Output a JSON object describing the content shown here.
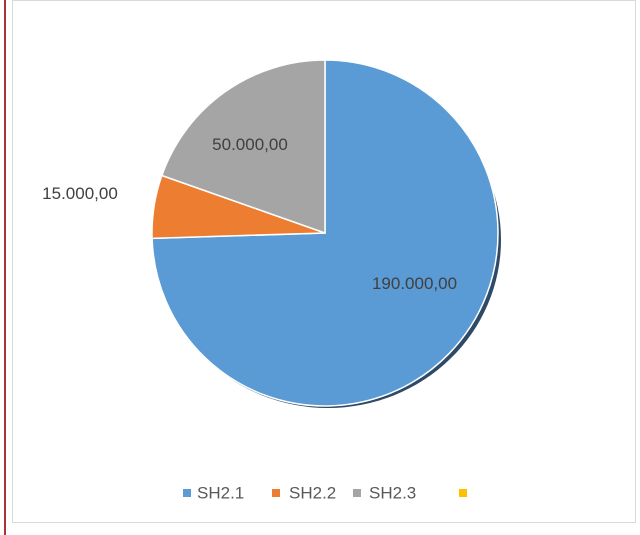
{
  "chart_data": {
    "type": "pie",
    "categories": [
      "SH2.1",
      "SH2.2",
      "SH2.3",
      null
    ],
    "values": [
      190000,
      15000,
      50000,
      null
    ],
    "value_labels": [
      "190.000,00",
      "15.000,00",
      "50.000,00",
      null
    ],
    "colors": [
      "#5b9bd5",
      "#ed7d31",
      "#a5a5a5",
      "#ffc000"
    ],
    "legend": "bottom"
  }
}
